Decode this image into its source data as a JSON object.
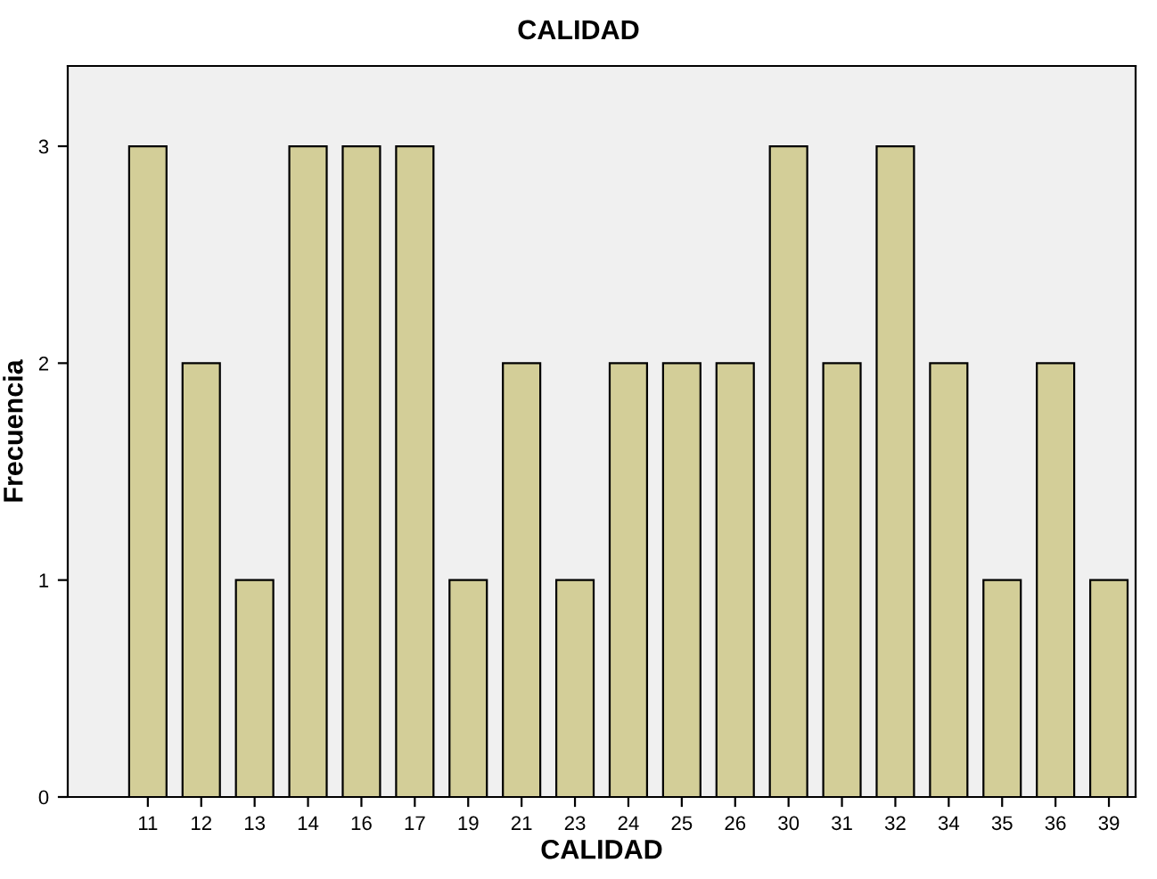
{
  "chart_data": {
    "type": "bar",
    "title": "CALIDAD",
    "xlabel": "CALIDAD",
    "ylabel": "Frecuencia",
    "categories": [
      "11",
      "12",
      "13",
      "14",
      "16",
      "17",
      "19",
      "21",
      "23",
      "24",
      "25",
      "26",
      "30",
      "31",
      "32",
      "34",
      "35",
      "36",
      "39"
    ],
    "values": [
      3,
      2,
      1,
      3,
      3,
      3,
      1,
      2,
      1,
      2,
      2,
      2,
      3,
      2,
      3,
      2,
      1,
      2,
      1
    ],
    "color": "#d3ce98",
    "ylim": [
      0,
      3.37
    ],
    "yticks": [
      0,
      1,
      2,
      3
    ],
    "grid": false,
    "legend": false
  }
}
